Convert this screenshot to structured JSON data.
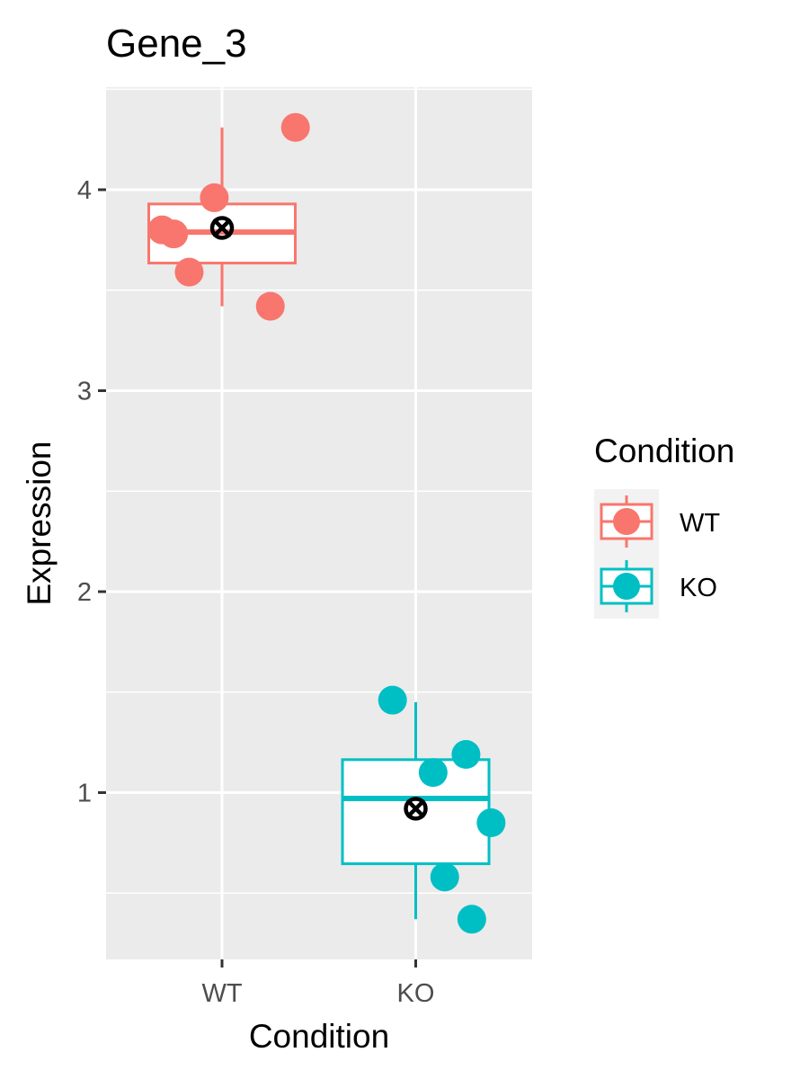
{
  "chart_data": {
    "type": "box",
    "title": "Gene_3",
    "xlabel": "Condition",
    "ylabel": "Expression",
    "categories": [
      "WT",
      "KO"
    ],
    "ylim": [
      0.17,
      4.51
    ],
    "yticks": [
      1,
      2,
      3,
      4
    ],
    "ytick_labels": [
      "1",
      "2",
      "3",
      "4"
    ],
    "minor_yticks": [
      0.5,
      1.5,
      2.5,
      3.5,
      4.5
    ],
    "grid": true,
    "legend": {
      "title": "Condition",
      "position": "right",
      "entries": [
        {
          "label": "WT",
          "color": "#F8766D"
        },
        {
          "label": "KO",
          "color": "#00BFC4"
        }
      ]
    },
    "series": [
      {
        "name": "WT",
        "color": "#F8766D",
        "box": {
          "q1": 3.635,
          "median": 3.789,
          "q3": 3.929,
          "whisker_low": 3.42,
          "whisker_high": 4.31
        },
        "mean": 3.81,
        "points": [
          {
            "jitter": 0.38,
            "y": 4.31
          },
          {
            "jitter": -0.04,
            "y": 3.96
          },
          {
            "jitter": -0.31,
            "y": 3.8
          },
          {
            "jitter": -0.25,
            "y": 3.78
          },
          {
            "jitter": -0.17,
            "y": 3.59
          },
          {
            "jitter": 0.25,
            "y": 3.42
          }
        ]
      },
      {
        "name": "KO",
        "color": "#00BFC4",
        "box": {
          "q1": 0.646,
          "median": 0.971,
          "q3": 1.164,
          "whisker_low": 0.37,
          "whisker_high": 1.45
        },
        "mean": 0.92,
        "points": [
          {
            "jitter": -0.12,
            "y": 1.46
          },
          {
            "jitter": 0.26,
            "y": 1.19
          },
          {
            "jitter": 0.09,
            "y": 1.1
          },
          {
            "jitter": 0.39,
            "y": 0.85
          },
          {
            "jitter": 0.15,
            "y": 0.58
          },
          {
            "jitter": 0.29,
            "y": 0.37
          }
        ]
      }
    ]
  },
  "colors": {
    "panel_background": "#EBEBEB",
    "grid": "#FFFFFF",
    "mean_marker": "#000000",
    "legend_key_background": "#F2F2F2"
  }
}
